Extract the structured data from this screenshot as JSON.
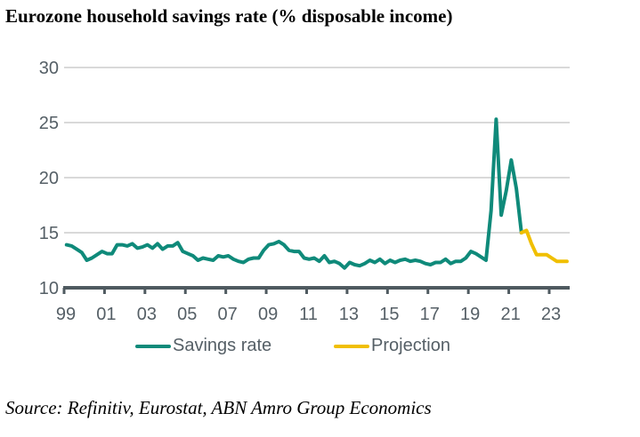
{
  "title": "Eurozone household savings rate (% disposable income)",
  "source": "Source: Refinitiv, Eurostat, ABN Amro Group Economics",
  "colors": {
    "savings": "#0f8a7a",
    "projection": "#f0bf00",
    "grid": "#d9d9d9",
    "axis": "#4f5a60",
    "text": "#555f66"
  },
  "chart_data": {
    "type": "line",
    "title": "Eurozone household savings rate (% disposable income)",
    "xlabel": "",
    "ylabel": "",
    "ylim": [
      10,
      30
    ],
    "yticks": [
      10,
      15,
      20,
      25,
      30
    ],
    "xlim": [
      1999.0,
      2024.0
    ],
    "xticks": [
      {
        "value": 1999,
        "label": "99"
      },
      {
        "value": 2001,
        "label": "01"
      },
      {
        "value": 2003,
        "label": "03"
      },
      {
        "value": 2005,
        "label": "05"
      },
      {
        "value": 2007,
        "label": "07"
      },
      {
        "value": 2009,
        "label": "09"
      },
      {
        "value": 2011,
        "label": "11"
      },
      {
        "value": 2013,
        "label": "13"
      },
      {
        "value": 2015,
        "label": "15"
      },
      {
        "value": 2017,
        "label": "17"
      },
      {
        "value": 2019,
        "label": "19"
      },
      {
        "value": 2021,
        "label": "21"
      },
      {
        "value": 2023,
        "label": "23"
      }
    ],
    "grid": true,
    "legend_position": "bottom",
    "frequency": "quarterly",
    "series": [
      {
        "name": "Savings rate",
        "start": "1999Q1",
        "values": [
          13.9,
          13.8,
          13.5,
          13.2,
          12.5,
          12.7,
          13.0,
          13.3,
          13.1,
          13.1,
          13.9,
          13.9,
          13.8,
          14.0,
          13.6,
          13.7,
          13.9,
          13.6,
          14.0,
          13.5,
          13.8,
          13.8,
          14.1,
          13.3,
          13.1,
          12.9,
          12.5,
          12.7,
          12.6,
          12.5,
          12.9,
          12.8,
          12.9,
          12.6,
          12.4,
          12.3,
          12.6,
          12.7,
          12.7,
          13.4,
          13.9,
          14.0,
          14.2,
          13.9,
          13.4,
          13.3,
          13.3,
          12.7,
          12.6,
          12.7,
          12.4,
          12.9,
          12.3,
          12.4,
          12.2,
          11.8,
          12.3,
          12.1,
          12.0,
          12.2,
          12.5,
          12.3,
          12.6,
          12.2,
          12.5,
          12.3,
          12.5,
          12.6,
          12.4,
          12.5,
          12.4,
          12.2,
          12.1,
          12.3,
          12.3,
          12.6,
          12.2,
          12.4,
          12.4,
          12.7,
          13.3,
          13.1,
          12.8,
          12.5,
          17.0,
          25.3,
          16.6,
          18.8,
          21.6,
          19.0,
          15.0
        ]
      },
      {
        "name": "Projection",
        "start": "2021Q3",
        "values": [
          15.0,
          15.2,
          14.0,
          13.0,
          13.0,
          13.0,
          12.7,
          12.4,
          12.4,
          12.4
        ]
      }
    ]
  },
  "legend": [
    {
      "label": "Savings rate",
      "color": "#0f8a7a"
    },
    {
      "label": "Projection",
      "color": "#f0bf00"
    }
  ]
}
